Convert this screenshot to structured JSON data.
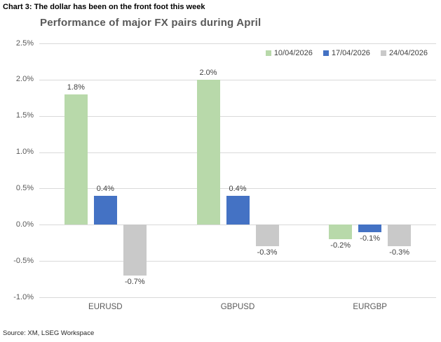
{
  "header": {
    "title": "Chart 3: The dollar has been on the front foot this week"
  },
  "chart_data": {
    "type": "bar",
    "title": "Performance of major FX pairs during April",
    "categories": [
      "EURUSD",
      "GBPUSD",
      "EURGBP"
    ],
    "series": [
      {
        "name": "10/04/2026",
        "color": "#b8d9aa",
        "values": [
          1.8,
          2.0,
          -0.2
        ]
      },
      {
        "name": "17/04/2026",
        "color": "#4472c4",
        "values": [
          0.4,
          0.4,
          -0.1
        ]
      },
      {
        "name": "24/04/2026",
        "color": "#c9c9c9",
        "values": [
          -0.7,
          -0.3,
          -0.3
        ]
      }
    ],
    "data_labels": [
      [
        "1.8%",
        "2.0%",
        "-0.2%"
      ],
      [
        "0.4%",
        "0.4%",
        "-0.1%"
      ],
      [
        "-0.7%",
        "-0.3%",
        "-0.3%"
      ]
    ],
    "ylim": [
      -1.0,
      2.5
    ],
    "ytick_step": 0.5,
    "ytick_labels": [
      "2.5%",
      "2.0%",
      "1.5%",
      "1.0%",
      "0.5%",
      "0.0%",
      "-0.5%",
      "-1.0%"
    ],
    "xlabel": "",
    "ylabel": "",
    "grid": true,
    "legend_position": "top-right"
  },
  "footer": {
    "source": "Source: XM, LSEG Workspace"
  },
  "colors": {
    "gridline": "#d9d9d9",
    "axis_text": "#595959",
    "title_text": "#595959",
    "header_text": "#000000",
    "label_text": "#3f3f3f"
  }
}
